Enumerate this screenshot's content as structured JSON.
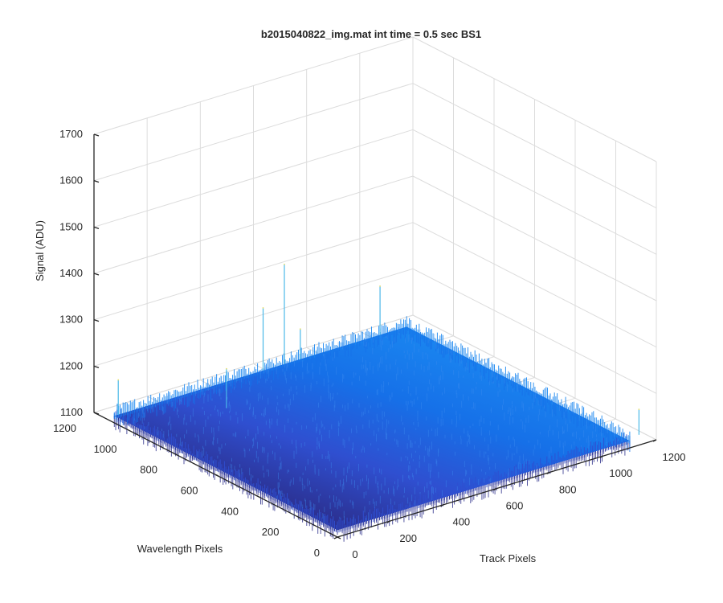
{
  "chart_data": {
    "type": "surface",
    "title": "b2015040822_img.mat int time = 0.5 sec   BS1",
    "xlabel": "Track Pixels",
    "ylabel": "Wavelength Pixels",
    "zlabel": "Signal (ADU)",
    "xlim": [
      0,
      1200
    ],
    "ylim": [
      0,
      1200
    ],
    "zlim": [
      1100,
      1700
    ],
    "xticks": [
      "0",
      "200",
      "400",
      "600",
      "800",
      "1000",
      "1200"
    ],
    "yticks": [
      "0",
      "200",
      "400",
      "600",
      "800",
      "1000",
      "1200"
    ],
    "zticks": [
      "1100",
      "1200",
      "1300",
      "1400",
      "1500",
      "1600",
      "1700"
    ],
    "grid": true,
    "surface": {
      "x_range": [
        0,
        1100
      ],
      "y_range": [
        0,
        1100
      ],
      "baseline_signal": 1115,
      "noise_amplitude": 10,
      "colormap": [
        "#2b2d8a",
        "#2f4fd0",
        "#1670e8",
        "#1a86f0"
      ]
    },
    "spikes": [
      {
        "x": 560,
        "y": 1100,
        "signal": 1250
      },
      {
        "x": 640,
        "y": 1100,
        "signal": 1330
      },
      {
        "x": 1000,
        "y": 1100,
        "signal": 1220
      },
      {
        "x": 1150,
        "y": 20,
        "signal": 1170
      },
      {
        "x": 15,
        "y": 1100,
        "signal": 1190
      },
      {
        "x": 700,
        "y": 1100,
        "signal": 1180
      },
      {
        "x": 300,
        "y": 940,
        "signal": 1200
      }
    ]
  }
}
